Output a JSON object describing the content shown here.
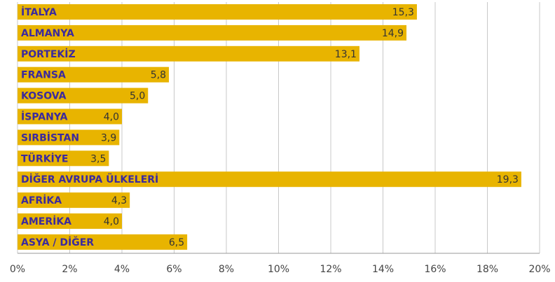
{
  "chart_data": {
    "type": "bar",
    "orientation": "horizontal",
    "categories": [
      "İTALYA",
      "ALMANYA",
      "PORTEKİZ",
      "FRANSA",
      "KOSOVA",
      "İSPANYA",
      "SIRBİSTAN",
      "TÜRKİYE",
      "DİĞER AVRUPA ÜLKELERİ",
      "AFRİKA",
      "AMERİKA",
      "ASYA / DİĞER"
    ],
    "values": [
      15.3,
      14.9,
      13.1,
      5.8,
      5.0,
      4.0,
      3.9,
      3.5,
      19.3,
      4.3,
      4.0,
      6.5
    ],
    "value_labels": [
      "15,3",
      "14,9",
      "13,1",
      "5,8",
      "5,0",
      "4,0",
      "3,9",
      "3,5",
      "19,3",
      "4,3",
      "4,0",
      "6,5"
    ],
    "color": "#e8b400",
    "xlim": [
      0,
      20
    ],
    "xticks": [
      {
        "value": 0,
        "label": "0%"
      },
      {
        "value": 2,
        "label": "2%"
      },
      {
        "value": 4,
        "label": "4%"
      },
      {
        "value": 6,
        "label": "6%"
      },
      {
        "value": 8,
        "label": "8%"
      },
      {
        "value": 10,
        "label": "10%"
      },
      {
        "value": 12,
        "label": "12%"
      },
      {
        "value": 14,
        "label": "14%"
      },
      {
        "value": 16,
        "label": "16%"
      },
      {
        "value": 18,
        "label": "18%"
      },
      {
        "value": 20,
        "label": "20%"
      }
    ],
    "grid": true
  }
}
